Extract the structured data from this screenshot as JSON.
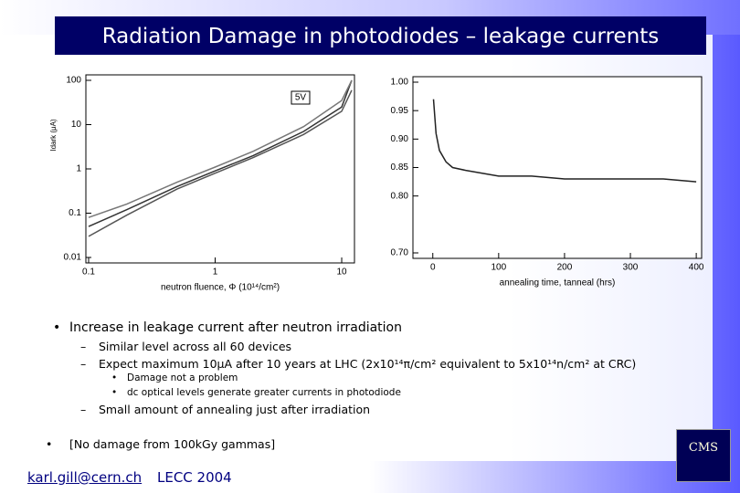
{
  "header": {
    "title": "Radiation Damage in photodiodes – leakage currents"
  },
  "chart_data": [
    {
      "type": "line",
      "log": true,
      "annotation": "5V",
      "ylabel": "Idark (μA)",
      "xlabel": "neutron fluence, Φ (10¹⁴/cm²)",
      "x": [
        0.1,
        0.2,
        0.5,
        1,
        2,
        5,
        10,
        12
      ],
      "series": [
        {
          "color": "#555555",
          "values": [
            0.03,
            0.09,
            0.35,
            0.8,
            1.8,
            6,
            20,
            60
          ]
        },
        {
          "color": "#333333",
          "values": [
            0.05,
            0.12,
            0.4,
            0.9,
            2,
            7,
            25,
            100
          ]
        },
        {
          "color": "#777777",
          "values": [
            0.08,
            0.16,
            0.5,
            1.1,
            2.5,
            9,
            35,
            100
          ]
        }
      ],
      "xlim": [
        0.1,
        12
      ],
      "ylim": [
        0.01,
        100
      ],
      "xticks": [
        0.1,
        1,
        10
      ],
      "yticks": [
        0.01,
        0.1,
        1,
        10,
        100
      ]
    },
    {
      "type": "line",
      "log": false,
      "xlabel": "annealing time, tanneal (hrs)",
      "x": [
        1,
        3,
        5,
        10,
        20,
        30,
        50,
        75,
        100,
        150,
        200,
        250,
        300,
        350,
        400
      ],
      "series": [
        {
          "color": "#222222",
          "values": [
            0.97,
            0.94,
            0.91,
            0.88,
            0.86,
            0.85,
            0.845,
            0.84,
            0.835,
            0.835,
            0.83,
            0.83,
            0.83,
            0.83,
            0.825
          ]
        }
      ],
      "xlim": [
        -26,
        404
      ],
      "ylim": [
        0.7,
        1.0
      ],
      "xticks": [
        0,
        100,
        200,
        300,
        400
      ],
      "yticks": [
        {
          "value": 0.7,
          "label": "0.70"
        },
        {
          "value": 0.8,
          "label": "0.80"
        },
        0.85,
        {
          "value": 0.9,
          "label": "0.90"
        },
        0.95,
        {
          "value": 1.0,
          "label": "1.00"
        }
      ]
    }
  ],
  "bullets": {
    "b1": "Increase in leakage current after neutron irradiation",
    "b1a": "Similar level across all 60 devices",
    "b1b": "Expect maximum 10μA after 10 years at LHC (2x10¹⁴π/cm² equivalent to 5x10¹⁴n/cm² at CRC)",
    "b1b1": "Damage not a problem",
    "b1b2": "dc optical levels generate greater currents in photodiode",
    "b1c": "Small amount of annealing just after irradiation",
    "b2": "[No damage from 100kGy gammas]"
  },
  "footer": {
    "email": "karl.gill@cern.ch",
    "event": "LECC 2004",
    "logo": "CMS"
  }
}
